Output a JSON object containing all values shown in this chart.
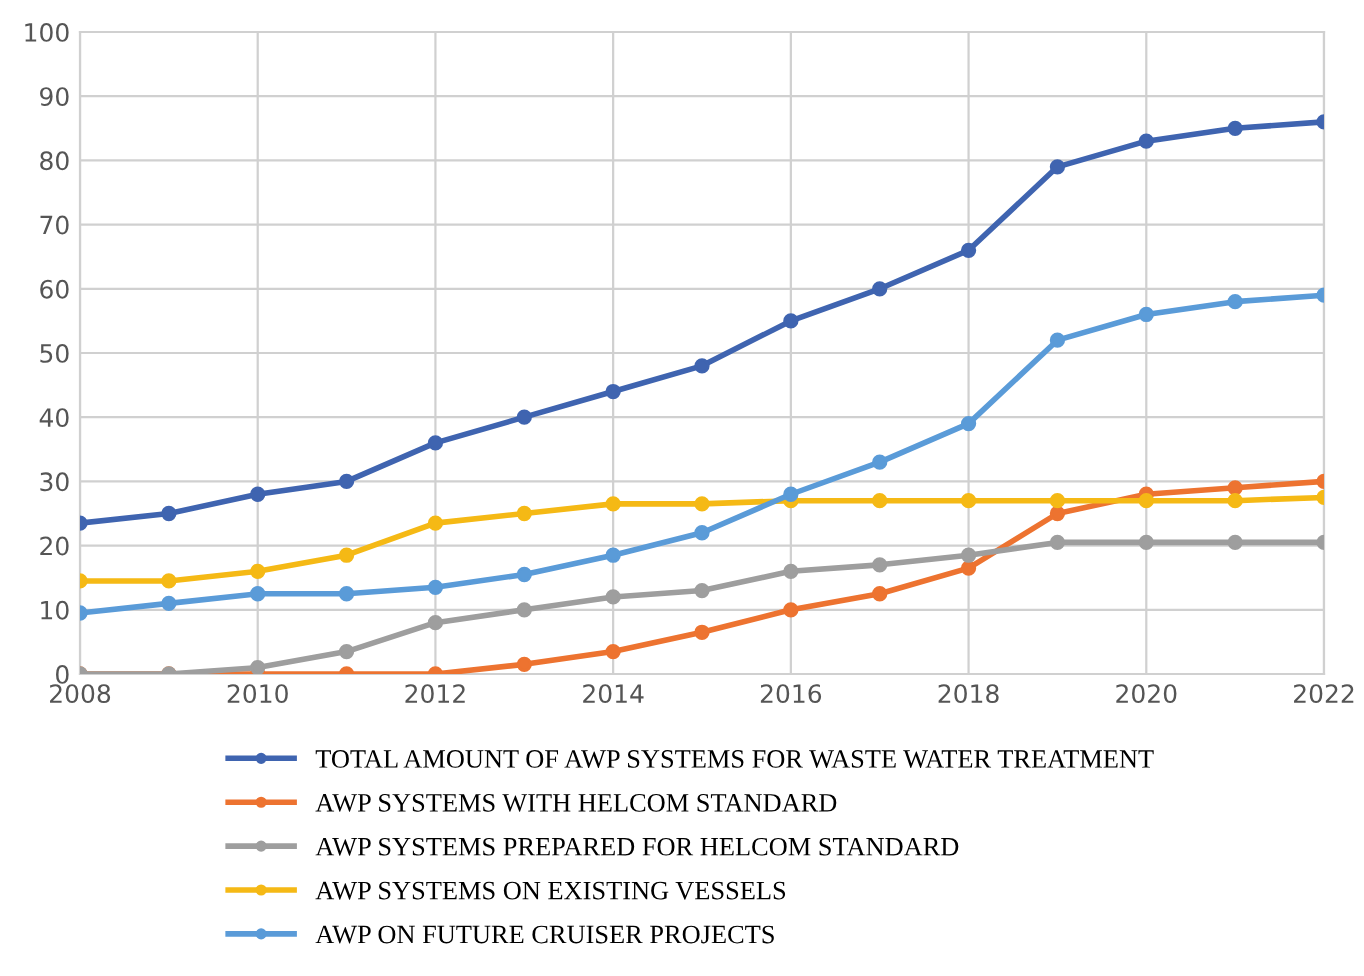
{
  "chart_data": {
    "type": "line",
    "x": [
      2008,
      2009,
      2010,
      2011,
      2012,
      2013,
      2014,
      2015,
      2016,
      2017,
      2018,
      2019,
      2020,
      2021,
      2022
    ],
    "series": [
      {
        "name": "TOTAL AMOUNT OF AWP SYSTEMS FOR WASTE WATER TREATMENT",
        "color": "#3f64b0",
        "values": [
          23.5,
          25,
          28,
          30,
          36,
          40,
          44,
          48,
          55,
          60,
          66,
          79,
          83,
          85,
          86
        ]
      },
      {
        "name": "AWP SYSTEMS WITH HELCOM STANDARD",
        "color": "#ed7330",
        "values": [
          0,
          0,
          0,
          0,
          0,
          1.5,
          3.5,
          6.5,
          10,
          12.5,
          16.5,
          25,
          28,
          29,
          30
        ]
      },
      {
        "name": "AWP SYSTEMS PREPARED FOR HELCOM STANDARD",
        "color": "#9e9e9e",
        "values": [
          0,
          0,
          1,
          3.5,
          8,
          10,
          12,
          13,
          16,
          17,
          18.5,
          20.5,
          20.5,
          20.5,
          20.5
        ]
      },
      {
        "name": "AWP SYSTEMS ON EXISTING VESSELS",
        "color": "#f5b915",
        "values": [
          14.5,
          14.5,
          16,
          18.5,
          23.5,
          25,
          26.5,
          26.5,
          27,
          27,
          27,
          27,
          27,
          27,
          27.5
        ]
      },
      {
        "name": "AWP ON FUTURE CRUISER PROJECTS",
        "color": "#5a9bd8",
        "values": [
          9.5,
          11,
          12.5,
          12.5,
          13.5,
          15.5,
          18.5,
          22,
          28,
          33,
          39,
          52,
          56,
          58,
          59
        ]
      }
    ],
    "xlim": [
      2008,
      2022
    ],
    "xticks": [
      2008,
      2010,
      2012,
      2014,
      2016,
      2018,
      2020,
      2022
    ],
    "ylim": [
      0,
      100
    ],
    "yticks": [
      0,
      10,
      20,
      30,
      40,
      50,
      60,
      70,
      80,
      90,
      100
    ],
    "grid": true,
    "legend": "bottom",
    "marker": "circle",
    "line_style": "solid"
  }
}
